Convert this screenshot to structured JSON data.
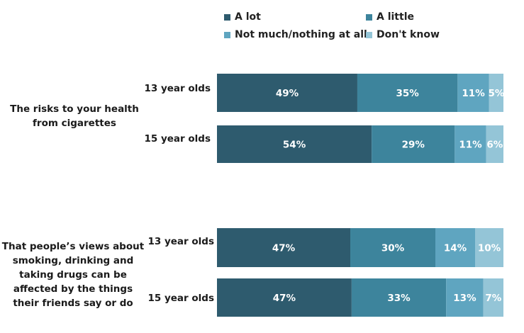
{
  "chart_data": {
    "type": "bar",
    "orientation": "horizontal",
    "stacked": true,
    "legend": {
      "placement": "top",
      "entries": [
        "A lot",
        "A little",
        "Not much/nothing at all",
        "Don't know"
      ]
    },
    "colors": [
      "#2e5b6e",
      "#3d849c",
      "#5fa5c0",
      "#94c5d7"
    ],
    "label_color": "#ffffff",
    "xlim": [
      0,
      100
    ],
    "groups": [
      {
        "label": "The risks to your health from cigarettes",
        "rows": [
          {
            "label": "13 year olds",
            "values": [
              49,
              35,
              11,
              5
            ]
          },
          {
            "label": "15 year olds",
            "values": [
              54,
              29,
              11,
              6
            ]
          }
        ]
      },
      {
        "label": "That people’s views about smoking, drinking and taking drugs can be affected by the things their friends say or do",
        "rows": [
          {
            "label": "13 year olds",
            "values": [
              47,
              30,
              14,
              10
            ]
          },
          {
            "label": "15 year olds",
            "values": [
              47,
              33,
              13,
              7
            ]
          }
        ]
      }
    ]
  }
}
